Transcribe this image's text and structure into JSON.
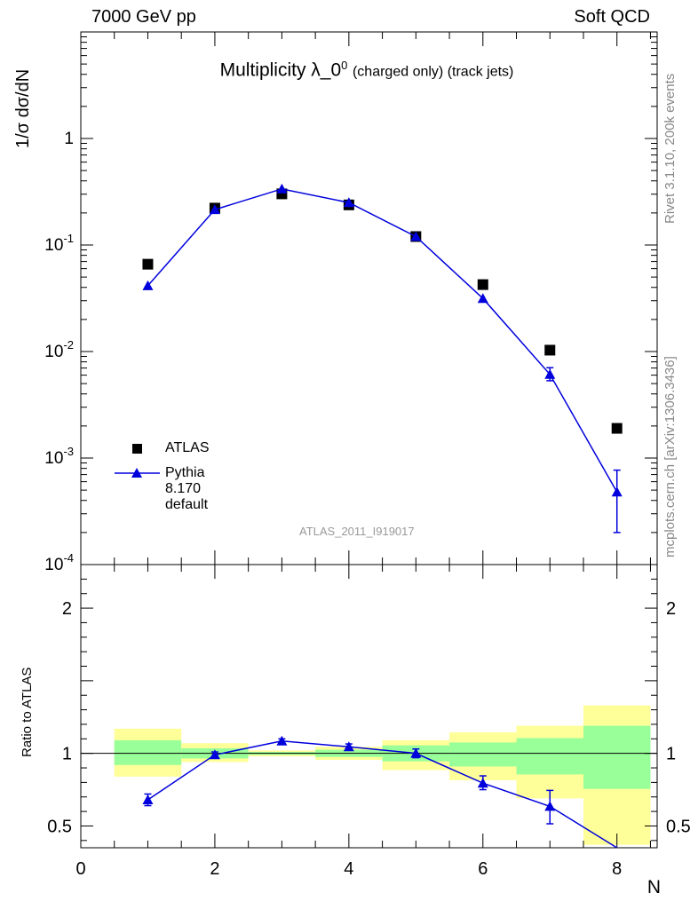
{
  "header": {
    "energy": "7000 GeV pp",
    "process": "Soft QCD"
  },
  "title": {
    "main": "Multiplicity λ_0",
    "sup": "0",
    "sub": "(charged only) (track jets)"
  },
  "side_labels": {
    "rivet": "Rivet 3.1.10,  200k events",
    "mcplots": "mcplots.cern.ch [arXiv:1306.3436]"
  },
  "analysis_id": "ATLAS_2011_I919017",
  "chart_data": [
    {
      "type": "scatter",
      "panel": "main",
      "ylabel": "1/σ dσ/dN",
      "yscale": "log",
      "ylim": [
        0.0001,
        10
      ],
      "xlim": [
        0,
        8.6
      ],
      "ytick_labels": [
        "10^-4",
        "10^-3",
        "10^-2",
        "10^-1",
        "1"
      ],
      "legend": {
        "placement": "bottom-left"
      },
      "series": [
        {
          "name": "ATLAS",
          "marker": "square",
          "color": "#000000",
          "x": [
            1,
            2,
            3,
            4,
            5,
            6,
            7,
            8
          ],
          "y": [
            0.066,
            0.222,
            0.302,
            0.238,
            0.12,
            0.0425,
            0.0103,
            0.0019
          ]
        },
        {
          "name": "Pythia 8.170 default",
          "marker": "triangle",
          "color": "#0000dd",
          "x": [
            1,
            2,
            3,
            4,
            5,
            6,
            7,
            8
          ],
          "y": [
            0.0415,
            0.215,
            0.336,
            0.25,
            0.12,
            0.0315,
            0.0061,
            0.00048
          ],
          "err_low": [
            0,
            0,
            0,
            0,
            0,
            0,
            0.00078,
            0.00028
          ],
          "err_high": [
            0,
            0,
            0,
            0,
            0,
            0,
            0.00095,
            0.00029
          ]
        }
      ]
    },
    {
      "type": "line",
      "panel": "ratio",
      "ylabel": "Ratio to ATLAS",
      "xlabel": "N",
      "ylim": [
        0.35,
        2.3
      ],
      "xlim": [
        0,
        8.6
      ],
      "yticks": [
        0.5,
        1,
        2
      ],
      "ytick_labels": [
        "0.5",
        "1",
        "2"
      ],
      "xticks": [
        0,
        2,
        4,
        6,
        8
      ],
      "xtick_labels": [
        "0",
        "2",
        "4",
        "6",
        "8"
      ],
      "reference": 1,
      "bands": [
        {
          "x0": 0.5,
          "x1": 1.5,
          "yellow": [
            0.84,
            1.17
          ],
          "green": [
            0.92,
            1.09
          ]
        },
        {
          "x0": 1.5,
          "x1": 2.5,
          "yellow": [
            0.94,
            1.07
          ],
          "green": [
            0.965,
            1.035
          ]
        },
        {
          "x0": 2.5,
          "x1": 3.5,
          "yellow": [
            0.98,
            1.02
          ],
          "green": [
            0.99,
            1.01
          ]
        },
        {
          "x0": 3.5,
          "x1": 4.5,
          "yellow": [
            0.955,
            1.045
          ],
          "green": [
            0.975,
            1.025
          ]
        },
        {
          "x0": 4.5,
          "x1": 5.5,
          "yellow": [
            0.885,
            1.09
          ],
          "green": [
            0.945,
            1.055
          ]
        },
        {
          "x0": 5.5,
          "x1": 6.5,
          "yellow": [
            0.815,
            1.145
          ],
          "green": [
            0.91,
            1.075
          ]
        },
        {
          "x0": 6.5,
          "x1": 7.5,
          "yellow": [
            0.69,
            1.19
          ],
          "green": [
            0.855,
            1.105
          ]
        },
        {
          "x0": 7.5,
          "x1": 8.5,
          "yellow": [
            0.37,
            1.33
          ],
          "green": [
            0.755,
            1.19
          ]
        }
      ],
      "series": [
        {
          "name": "Pythia 8.170 default",
          "color": "#0000dd",
          "x": [
            1,
            2,
            3,
            4,
            5,
            6,
            7,
            8
          ],
          "y": [
            0.68,
            0.99,
            1.085,
            1.045,
            1.0,
            0.795,
            0.635,
            0.252
          ],
          "err_low": [
            0.04,
            0.02,
            0.015,
            0.02,
            0.03,
            0.045,
            0.12,
            0.0
          ],
          "err_high": [
            0.04,
            0.02,
            0.015,
            0.02,
            0.03,
            0.05,
            0.11,
            0.0
          ]
        }
      ],
      "colors": {
        "yellow": "#ffff99",
        "green": "#99ff99",
        "line": "#0000dd"
      }
    }
  ]
}
